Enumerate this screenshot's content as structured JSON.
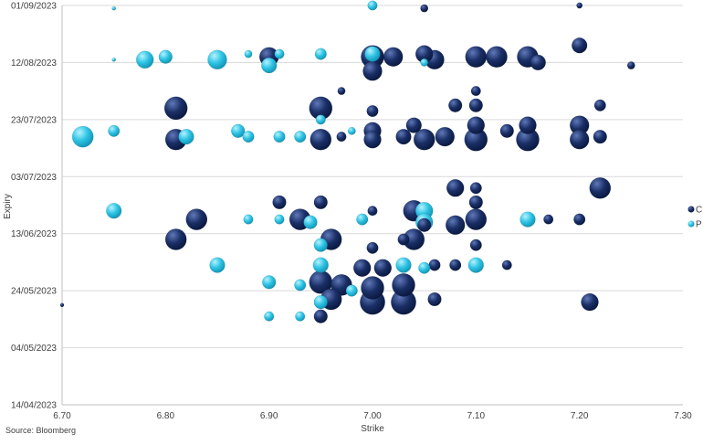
{
  "chart_data": {
    "type": "scatter",
    "title": "",
    "xlabel": "Strike",
    "ylabel": "Expiry",
    "xlim": [
      6.7,
      7.3
    ],
    "ylim": [
      "2023-04-14",
      "2023-09-01"
    ],
    "x_ticks": [
      "6.70",
      "6.80",
      "6.90",
      "7.00",
      "7.10",
      "7.20",
      "7.30"
    ],
    "y_ticks": [
      "01/09/2023",
      "12/08/2023",
      "23/07/2023",
      "03/07/2023",
      "13/06/2023",
      "24/05/2023",
      "04/05/2023",
      "14/04/2023"
    ],
    "y_tick_dates": [
      "2023-09-01",
      "2023-08-12",
      "2023-07-23",
      "2023-07-03",
      "2023-06-13",
      "2023-05-24",
      "2023-05-04",
      "2023-04-14"
    ],
    "grid": "horizontal",
    "legend_position": "right",
    "source": "Source: Bloomberg",
    "colors": {
      "C": "#1a2f66",
      "P": "#2ec4e4"
    },
    "series": [
      {
        "name": "C",
        "points": [
          {
            "x": 7.05,
            "y": "2023-08-31",
            "size": 4
          },
          {
            "x": 7.2,
            "y": "2023-09-01",
            "size": 3
          },
          {
            "x": 6.9,
            "y": "2023-08-14",
            "size": 10
          },
          {
            "x": 7.0,
            "y": "2023-08-14",
            "size": 12
          },
          {
            "x": 7.02,
            "y": "2023-08-14",
            "size": 10
          },
          {
            "x": 7.05,
            "y": "2023-08-15",
            "size": 9
          },
          {
            "x": 7.06,
            "y": "2023-08-13",
            "size": 10
          },
          {
            "x": 7.1,
            "y": "2023-08-14",
            "size": 11
          },
          {
            "x": 7.12,
            "y": "2023-08-14",
            "size": 11
          },
          {
            "x": 7.15,
            "y": "2023-08-14",
            "size": 11
          },
          {
            "x": 7.16,
            "y": "2023-08-12",
            "size": 8
          },
          {
            "x": 7.2,
            "y": "2023-08-18",
            "size": 8
          },
          {
            "x": 7.25,
            "y": "2023-08-11",
            "size": 4
          },
          {
            "x": 7.0,
            "y": "2023-08-09",
            "size": 10
          },
          {
            "x": 6.97,
            "y": "2023-08-02",
            "size": 4
          },
          {
            "x": 7.1,
            "y": "2023-08-02",
            "size": 5
          },
          {
            "x": 6.81,
            "y": "2023-07-27",
            "size": 12
          },
          {
            "x": 6.95,
            "y": "2023-07-27",
            "size": 12
          },
          {
            "x": 7.0,
            "y": "2023-07-26",
            "size": 6
          },
          {
            "x": 7.08,
            "y": "2023-07-28",
            "size": 7
          },
          {
            "x": 7.1,
            "y": "2023-07-28",
            "size": 7
          },
          {
            "x": 7.22,
            "y": "2023-07-28",
            "size": 6
          },
          {
            "x": 7.04,
            "y": "2023-07-21",
            "size": 8
          },
          {
            "x": 7.1,
            "y": "2023-07-21",
            "size": 9
          },
          {
            "x": 7.15,
            "y": "2023-07-21",
            "size": 9
          },
          {
            "x": 7.2,
            "y": "2023-07-21",
            "size": 10
          },
          {
            "x": 7.0,
            "y": "2023-07-19",
            "size": 9
          },
          {
            "x": 7.13,
            "y": "2023-07-19",
            "size": 7
          },
          {
            "x": 6.81,
            "y": "2023-07-16",
            "size": 11
          },
          {
            "x": 6.95,
            "y": "2023-07-16",
            "size": 11
          },
          {
            "x": 6.97,
            "y": "2023-07-17",
            "size": 5
          },
          {
            "x": 7.0,
            "y": "2023-07-16",
            "size": 9
          },
          {
            "x": 7.03,
            "y": "2023-07-17",
            "size": 8
          },
          {
            "x": 7.05,
            "y": "2023-07-16",
            "size": 11
          },
          {
            "x": 7.07,
            "y": "2023-07-17",
            "size": 10
          },
          {
            "x": 7.1,
            "y": "2023-07-16",
            "size": 12
          },
          {
            "x": 7.15,
            "y": "2023-07-16",
            "size": 12
          },
          {
            "x": 7.2,
            "y": "2023-07-16",
            "size": 10
          },
          {
            "x": 7.22,
            "y": "2023-07-17",
            "size": 7
          },
          {
            "x": 7.08,
            "y": "2023-06-29",
            "size": 9
          },
          {
            "x": 7.1,
            "y": "2023-06-29",
            "size": 6
          },
          {
            "x": 7.22,
            "y": "2023-06-29",
            "size": 11
          },
          {
            "x": 6.91,
            "y": "2023-06-24",
            "size": 7
          },
          {
            "x": 6.95,
            "y": "2023-06-24",
            "size": 7
          },
          {
            "x": 7.1,
            "y": "2023-06-24",
            "size": 7
          },
          {
            "x": 7.0,
            "y": "2023-06-21",
            "size": 5
          },
          {
            "x": 7.04,
            "y": "2023-06-21",
            "size": 11
          },
          {
            "x": 6.83,
            "y": "2023-06-18",
            "size": 11
          },
          {
            "x": 6.93,
            "y": "2023-06-18",
            "size": 11
          },
          {
            "x": 7.1,
            "y": "2023-06-18",
            "size": 11
          },
          {
            "x": 7.17,
            "y": "2023-06-18",
            "size": 5
          },
          {
            "x": 7.2,
            "y": "2023-06-18",
            "size": 6
          },
          {
            "x": 7.08,
            "y": "2023-06-16",
            "size": 10
          },
          {
            "x": 7.05,
            "y": "2023-06-16",
            "size": 7
          },
          {
            "x": 6.81,
            "y": "2023-06-11",
            "size": 11
          },
          {
            "x": 6.96,
            "y": "2023-06-11",
            "size": 11
          },
          {
            "x": 7.04,
            "y": "2023-06-11",
            "size": 11
          },
          {
            "x": 7.1,
            "y": "2023-06-09",
            "size": 6
          },
          {
            "x": 7.0,
            "y": "2023-06-08",
            "size": 6
          },
          {
            "x": 7.03,
            "y": "2023-06-11",
            "size": 6
          },
          {
            "x": 6.99,
            "y": "2023-06-01",
            "size": 9
          },
          {
            "x": 7.01,
            "y": "2023-06-01",
            "size": 9
          },
          {
            "x": 7.06,
            "y": "2023-06-02",
            "size": 6
          },
          {
            "x": 7.08,
            "y": "2023-06-02",
            "size": 6
          },
          {
            "x": 7.13,
            "y": "2023-06-02",
            "size": 5
          },
          {
            "x": 6.95,
            "y": "2023-05-27",
            "size": 12
          },
          {
            "x": 6.97,
            "y": "2023-05-26",
            "size": 11
          },
          {
            "x": 7.0,
            "y": "2023-05-25",
            "size": 12
          },
          {
            "x": 7.03,
            "y": "2023-05-26",
            "size": 12
          },
          {
            "x": 6.96,
            "y": "2023-05-21",
            "size": 11
          },
          {
            "x": 7.0,
            "y": "2023-05-20",
            "size": 13
          },
          {
            "x": 7.03,
            "y": "2023-05-20",
            "size": 13
          },
          {
            "x": 7.06,
            "y": "2023-05-21",
            "size": 7
          },
          {
            "x": 7.21,
            "y": "2023-05-20",
            "size": 9
          },
          {
            "x": 6.95,
            "y": "2023-05-15",
            "size": 7
          },
          {
            "x": 6.7,
            "y": "2023-05-19",
            "size": 2
          }
        ]
      },
      {
        "name": "P",
        "points": [
          {
            "x": 6.75,
            "y": "2023-08-31",
            "size": 2
          },
          {
            "x": 7.0,
            "y": "2023-09-01",
            "size": 5
          },
          {
            "x": 6.75,
            "y": "2023-08-13",
            "size": 2
          },
          {
            "x": 6.78,
            "y": "2023-08-13",
            "size": 9
          },
          {
            "x": 6.8,
            "y": "2023-08-14",
            "size": 7
          },
          {
            "x": 6.85,
            "y": "2023-08-13",
            "size": 10
          },
          {
            "x": 6.88,
            "y": "2023-08-15",
            "size": 4
          },
          {
            "x": 6.9,
            "y": "2023-08-11",
            "size": 8
          },
          {
            "x": 6.91,
            "y": "2023-08-15",
            "size": 5
          },
          {
            "x": 6.95,
            "y": "2023-08-15",
            "size": 6
          },
          {
            "x": 7.0,
            "y": "2023-08-15",
            "size": 8
          },
          {
            "x": 7.05,
            "y": "2023-08-12",
            "size": 4
          },
          {
            "x": 6.72,
            "y": "2023-07-17",
            "size": 11
          },
          {
            "x": 6.75,
            "y": "2023-07-19",
            "size": 6
          },
          {
            "x": 6.82,
            "y": "2023-07-17",
            "size": 8
          },
          {
            "x": 6.87,
            "y": "2023-07-19",
            "size": 7
          },
          {
            "x": 6.88,
            "y": "2023-07-17",
            "size": 6
          },
          {
            "x": 6.91,
            "y": "2023-07-17",
            "size": 6
          },
          {
            "x": 6.93,
            "y": "2023-07-17",
            "size": 6
          },
          {
            "x": 6.95,
            "y": "2023-07-23",
            "size": 5
          },
          {
            "x": 6.98,
            "y": "2023-07-19",
            "size": 4
          },
          {
            "x": 6.75,
            "y": "2023-06-21",
            "size": 8
          },
          {
            "x": 6.88,
            "y": "2023-06-18",
            "size": 5
          },
          {
            "x": 6.91,
            "y": "2023-06-18",
            "size": 5
          },
          {
            "x": 6.94,
            "y": "2023-06-17",
            "size": 7
          },
          {
            "x": 6.99,
            "y": "2023-06-18",
            "size": 6
          },
          {
            "x": 7.05,
            "y": "2023-06-21",
            "size": 9
          },
          {
            "x": 7.05,
            "y": "2023-06-17",
            "size": 9
          },
          {
            "x": 7.15,
            "y": "2023-06-18",
            "size": 8
          },
          {
            "x": 6.95,
            "y": "2023-06-09",
            "size": 7
          },
          {
            "x": 6.85,
            "y": "2023-06-02",
            "size": 8
          },
          {
            "x": 6.95,
            "y": "2023-06-02",
            "size": 8
          },
          {
            "x": 7.03,
            "y": "2023-06-02",
            "size": 8
          },
          {
            "x": 7.05,
            "y": "2023-06-01",
            "size": 6
          },
          {
            "x": 7.1,
            "y": "2023-06-02",
            "size": 8
          },
          {
            "x": 6.9,
            "y": "2023-05-27",
            "size": 7
          },
          {
            "x": 6.93,
            "y": "2023-05-26",
            "size": 6
          },
          {
            "x": 6.98,
            "y": "2023-05-24",
            "size": 6
          },
          {
            "x": 6.95,
            "y": "2023-05-20",
            "size": 7
          },
          {
            "x": 6.9,
            "y": "2023-05-15",
            "size": 5
          },
          {
            "x": 6.93,
            "y": "2023-05-15",
            "size": 5
          }
        ]
      }
    ]
  }
}
